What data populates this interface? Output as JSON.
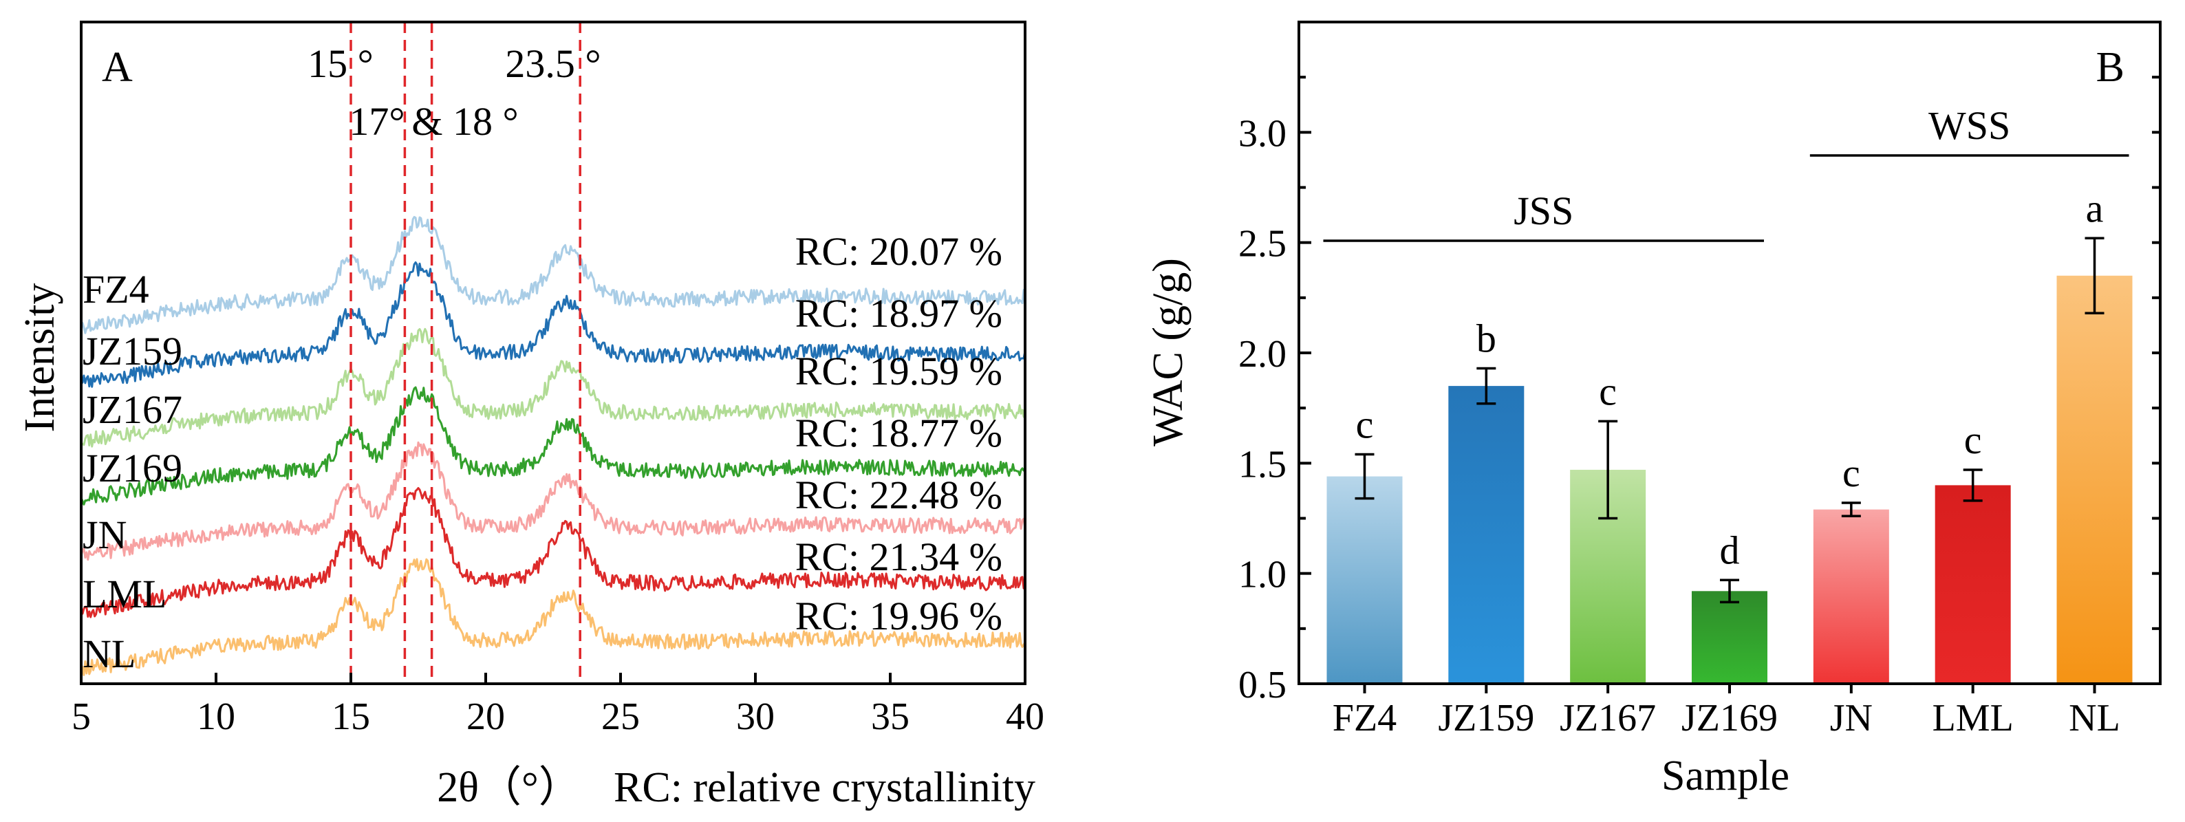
{
  "chart_data": [
    {
      "panel": "A",
      "type": "line",
      "title": "",
      "xlabel": "2θ（°）",
      "ylabel": "Intensity",
      "xlim": [
        5,
        40
      ],
      "xticks": [
        5,
        10,
        15,
        20,
        25,
        30,
        35,
        40
      ],
      "footnote": "RC: relative crystallinity",
      "peak_lines": [
        {
          "x": 15,
          "label": "15 °"
        },
        {
          "x": 17,
          "label": "17°"
        },
        {
          "x": 18,
          "label": "& 18 °"
        },
        {
          "x": 23.5,
          "label": "23.5 °"
        }
      ],
      "series": [
        {
          "name": "FZ4",
          "rc": "RC: 20.07 %",
          "color": "#a9cde6"
        },
        {
          "name": "JZ159",
          "rc": "RC: 18.97 %",
          "color": "#2170b3"
        },
        {
          "name": "JZ167",
          "rc": "RC: 19.59 %",
          "color": "#b1dc95"
        },
        {
          "name": "JZ169",
          "rc": "RC: 18.77 %",
          "color": "#33a02c"
        },
        {
          "name": "JN",
          "rc": "RC: 22.48 %",
          "color": "#f7a2a2"
        },
        {
          "name": "LML",
          "rc": "RC: 21.34 %",
          "color": "#dd2a2a"
        },
        {
          "name": "NL",
          "rc": "RC: 19.96 %",
          "color": "#fbbf6e"
        }
      ]
    },
    {
      "panel": "B",
      "type": "bar",
      "title": "",
      "xlabel": "Sample",
      "ylabel": "WAC (g/g)",
      "ylim": [
        0.5,
        3.5
      ],
      "yticks": [
        0.5,
        1.0,
        1.5,
        2.0,
        2.5,
        3.0
      ],
      "ytick_labels": [
        "0.5",
        "1.0",
        "1.5",
        "2.0",
        "2.5",
        "3.0"
      ],
      "categories": [
        "FZ4",
        "JZ159",
        "JZ167",
        "JZ169",
        "JN",
        "LML",
        "NL"
      ],
      "values": [
        1.44,
        1.85,
        1.47,
        0.92,
        1.29,
        1.4,
        2.35
      ],
      "errors": [
        0.1,
        0.08,
        0.22,
        0.05,
        0.03,
        0.07,
        0.17
      ],
      "letters": [
        "c",
        "b",
        "c",
        "d",
        "c",
        "c",
        "a"
      ],
      "colors": [
        [
          "#b7d6ea",
          "#4d96c4"
        ],
        [
          "#2576b8",
          "#2a93db"
        ],
        [
          "#c0e3a4",
          "#6dc040"
        ],
        [
          "#2e8b2a",
          "#36b830"
        ],
        [
          "#f9a6a6",
          "#f03434"
        ],
        [
          "#d81e1e",
          "#e82828"
        ],
        [
          "#fbc47e",
          "#f59314"
        ]
      ],
      "groups": [
        {
          "label": "JSS",
          "from": 0,
          "to": 3
        },
        {
          "label": "WSS",
          "from": 4,
          "to": 6
        }
      ]
    }
  ]
}
